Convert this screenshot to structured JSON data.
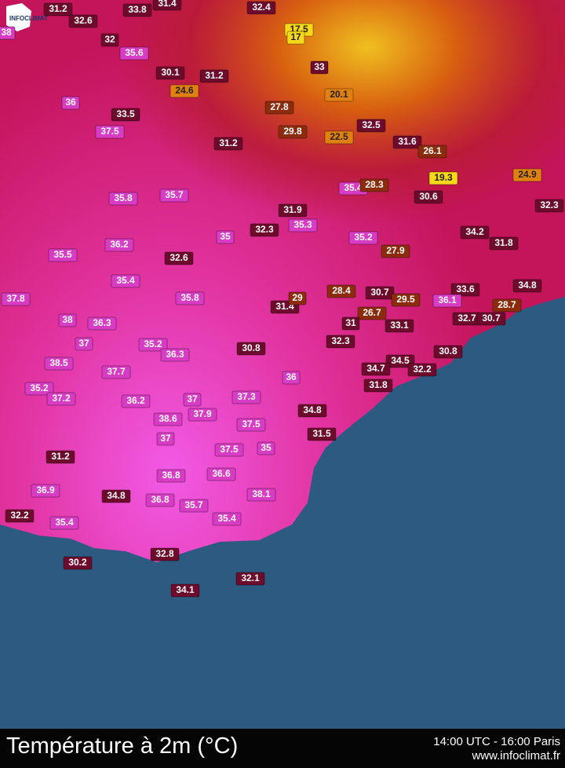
{
  "logo": "INFOCLIMAT",
  "stations": [
    31.2,
    33.8,
    31.4,
    32.4,
    17.5,
    17,
    32.6,
    32,
    35.6,
    33,
    38,
    30.1,
    31.2,
    24.6,
    20.1,
    36,
    33.5,
    27.8,
    29.8,
    32.5,
    37.5,
    22.5,
    31.2,
    31.6,
    26.1,
    19.3,
    24.9,
    35.4,
    28.3,
    35.8,
    35.7,
    30.6,
    32.3,
    31.9,
    35.3,
    32.3,
    35,
    35.2,
    34.2,
    31.8,
    27.9,
    36.2,
    35.5,
    32.6,
    35.4,
    28.4,
    30.7,
    29.5,
    33.6,
    34.8,
    36.1,
    35.8,
    37.8,
    31.4,
    29,
    28.7,
    32.7,
    30.7,
    26.7,
    31,
    33.1,
    38,
    36.3,
    32.3,
    37,
    35.2,
    36.3,
    30.8,
    30.8,
    34.5,
    32.2,
    34.7,
    38.5,
    37.7,
    36,
    31.8,
    35.2,
    37.2,
    36.2,
    37,
    37.3,
    37.9,
    34.8,
    38.6,
    37.5,
    37,
    31.5,
    37.5,
    35,
    31.2,
    36.8,
    36.6,
    36.9,
    34.8,
    36.8,
    35.7,
    38.1,
    32.2,
    35.4,
    35.4,
    32.8,
    30.2,
    32.1,
    34.1
  ],
  "footer": {
    "title": "Température à 2m (°C)",
    "time": "14:00 UTC - 16:00 Paris",
    "site": "www.infoclimat.fr"
  }
}
